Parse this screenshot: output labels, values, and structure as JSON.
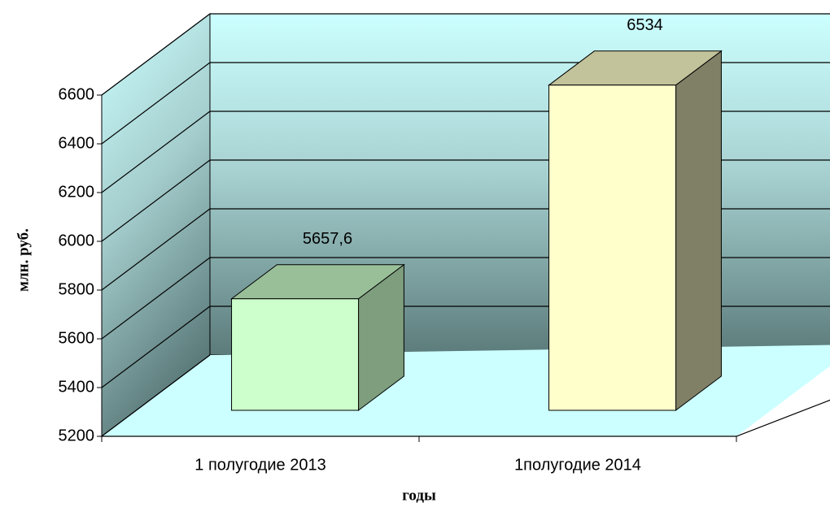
{
  "chart_data": {
    "type": "bar3d",
    "categories": [
      "1 полугодие 2013",
      "1полугодие 2014"
    ],
    "values": [
      5657.6,
      6534
    ],
    "value_labels": [
      "5657,6",
      "6534"
    ],
    "colors": [
      "#ccffcc",
      "#ffffcc"
    ],
    "ylim": [
      5200,
      6600
    ],
    "yticks": [
      5200,
      5400,
      5600,
      5800,
      6000,
      6200,
      6400,
      6600
    ],
    "ylabel": "млн. руб.",
    "xlabel": "годы",
    "grid": true
  }
}
